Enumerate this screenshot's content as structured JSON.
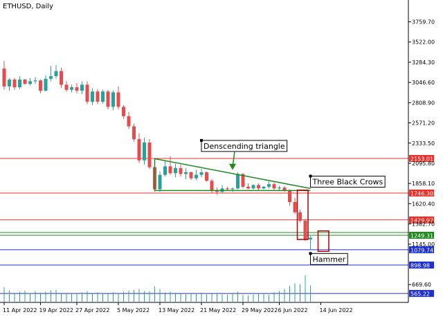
{
  "chart_data": {
    "type": "candlestick",
    "title": "ETHUSD, Daily",
    "ylim": [
      460,
      4000
    ],
    "y_ticks": [
      "3759.70",
      "3522.00",
      "3284.30",
      "3046.60",
      "2808.90",
      "2571.20",
      "2333.50",
      "2095.80",
      "1858.10",
      "1620.40",
      "1382.70",
      "1145.00",
      "669.60"
    ],
    "x_ticks": [
      {
        "label": "11 Apr 2022",
        "index": 0
      },
      {
        "label": "19 Apr 2022",
        "index": 7
      },
      {
        "label": "27 Apr 2022",
        "index": 14
      },
      {
        "label": "5 May 2022",
        "index": 22
      },
      {
        "label": "13 May 2022",
        "index": 30
      },
      {
        "label": "21 May 2022",
        "index": 38
      },
      {
        "label": "29 May 2022",
        "index": 46
      },
      {
        "label": "6 Jun 2022",
        "index": 53
      },
      {
        "label": "14 Jun 2022",
        "index": 61
      }
    ],
    "candles": [
      [
        3210,
        3300,
        2960,
        3000
      ],
      [
        3000,
        3100,
        2950,
        3080
      ],
      [
        3080,
        3100,
        2960,
        2990
      ],
      [
        2990,
        3120,
        2970,
        3080
      ],
      [
        3080,
        3090,
        3020,
        3030
      ],
      [
        3030,
        3100,
        3010,
        3060
      ],
      [
        3060,
        3110,
        3030,
        3070
      ],
      [
        3070,
        3080,
        2920,
        2950
      ],
      [
        2950,
        3130,
        2940,
        3090
      ],
      [
        3090,
        3240,
        3060,
        3120
      ],
      [
        3120,
        3250,
        3090,
        3180
      ],
      [
        3180,
        3220,
        2980,
        3020
      ],
      [
        3020,
        3060,
        2940,
        2960
      ],
      [
        2960,
        3020,
        2930,
        2990
      ],
      [
        2990,
        3040,
        2920,
        2950
      ],
      [
        2950,
        3060,
        2910,
        3020
      ],
      [
        3020,
        3060,
        2790,
        2820
      ],
      [
        2820,
        2980,
        2780,
        2940
      ],
      [
        2940,
        2970,
        2790,
        2820
      ],
      [
        2820,
        2960,
        2800,
        2940
      ],
      [
        2940,
        2960,
        2730,
        2760
      ],
      [
        2760,
        2950,
        2720,
        2930
      ],
      [
        2930,
        3000,
        2730,
        2760
      ],
      [
        2760,
        2780,
        2620,
        2650
      ],
      [
        2650,
        2700,
        2500,
        2530
      ],
      [
        2530,
        2560,
        2350,
        2380
      ],
      [
        2380,
        2450,
        2100,
        2130
      ],
      [
        2130,
        2400,
        2080,
        2340
      ],
      [
        2340,
        2380,
        2030,
        2050
      ],
      [
        2050,
        2090,
        1760,
        1790
      ],
      [
        1790,
        2000,
        1760,
        1960
      ],
      [
        1960,
        2120,
        1940,
        2060
      ],
      [
        2060,
        2180,
        1960,
        1980
      ],
      [
        1980,
        2090,
        1930,
        2040
      ],
      [
        2040,
        2080,
        1940,
        1970
      ],
      [
        1970,
        2040,
        1910,
        1990
      ],
      [
        1990,
        2000,
        1900,
        1920
      ],
      [
        1920,
        2020,
        1900,
        1960
      ],
      [
        1960,
        2030,
        1930,
        1990
      ],
      [
        1990,
        2000,
        1880,
        1890
      ],
      [
        1890,
        1910,
        1750,
        1780
      ],
      [
        1780,
        1810,
        1730,
        1760
      ],
      [
        1760,
        1840,
        1750,
        1800
      ],
      [
        1800,
        1820,
        1780,
        1790
      ],
      [
        1790,
        1810,
        1760,
        1800
      ],
      [
        1800,
        1990,
        1790,
        1970
      ],
      [
        1970,
        1980,
        1800,
        1820
      ],
      [
        1820,
        1860,
        1790,
        1800
      ],
      [
        1800,
        1850,
        1790,
        1840
      ],
      [
        1840,
        1860,
        1780,
        1800
      ],
      [
        1800,
        1830,
        1790,
        1820
      ],
      [
        1820,
        1880,
        1800,
        1850
      ],
      [
        1850,
        1870,
        1780,
        1800
      ],
      [
        1800,
        1830,
        1780,
        1810
      ],
      [
        1810,
        1830,
        1760,
        1780
      ],
      [
        1780,
        1790,
        1600,
        1640
      ],
      [
        1640,
        1690,
        1500,
        1520
      ],
      [
        1520,
        1550,
        1400,
        1420
      ],
      [
        1420,
        1440,
        1180,
        1200
      ],
      [
        1200,
        1240,
        1080,
        1220
      ]
    ],
    "volume": [
      55,
      42,
      30,
      38,
      42,
      32,
      40,
      34,
      38,
      42,
      45,
      30,
      30,
      32,
      32,
      36,
      40,
      30,
      36,
      33,
      30,
      36,
      32,
      38,
      42,
      45,
      48,
      40,
      40,
      58,
      48,
      35,
      38,
      34,
      30,
      28,
      30,
      32,
      34,
      28,
      30,
      34,
      28,
      26,
      30,
      38,
      26,
      24,
      28,
      30,
      32,
      26,
      36,
      40,
      48,
      60,
      70,
      66,
      100,
      62
    ],
    "price_levels": [
      {
        "label": "2153.01",
        "value": 2153.01,
        "color": "#e8322b"
      },
      {
        "label": "1746.30",
        "value": 1746.3,
        "color": "#e8322b"
      },
      {
        "label": "1429.97",
        "value": 1429.97,
        "color": "#e8322b"
      },
      {
        "label": "1249.31",
        "value": 1249.31,
        "color": "#1e8a1e"
      },
      {
        "label": "1079.74",
        "value": 1079.74,
        "color": "#1f2fd0"
      },
      {
        "label": "898.98",
        "value": 898.98,
        "color": "#1f2fd0"
      },
      {
        "label": "565.22",
        "value": 565.22,
        "color": "#1f2fd0"
      }
    ],
    "triangle": {
      "upper_start": [
        29,
        2150
      ],
      "upper_end": [
        59,
        1800
      ],
      "lower_start": [
        29,
        1775
      ],
      "lower_end": [
        59,
        1775
      ]
    },
    "crows_box": {
      "i0": 57,
      "i1": 58,
      "top": 1780,
      "bottom": 1200
    },
    "hammer_box": {
      "i0": 61,
      "i1": 62,
      "top": 1300,
      "bottom": 1060
    },
    "annotations": [
      {
        "text": "Denscending triangle",
        "index": 38,
        "value": 2300
      },
      {
        "text": "Three Black Crows",
        "index": 59,
        "value": 1880
      },
      {
        "text": "Hammer",
        "index": 59,
        "value": 970
      }
    ],
    "colors": {
      "up": "#2aa198",
      "down": "#e34d4d",
      "volume": "#2aa198",
      "triangle": "#1e8a1e",
      "box": "#b00000",
      "axis": "#000000"
    }
  }
}
